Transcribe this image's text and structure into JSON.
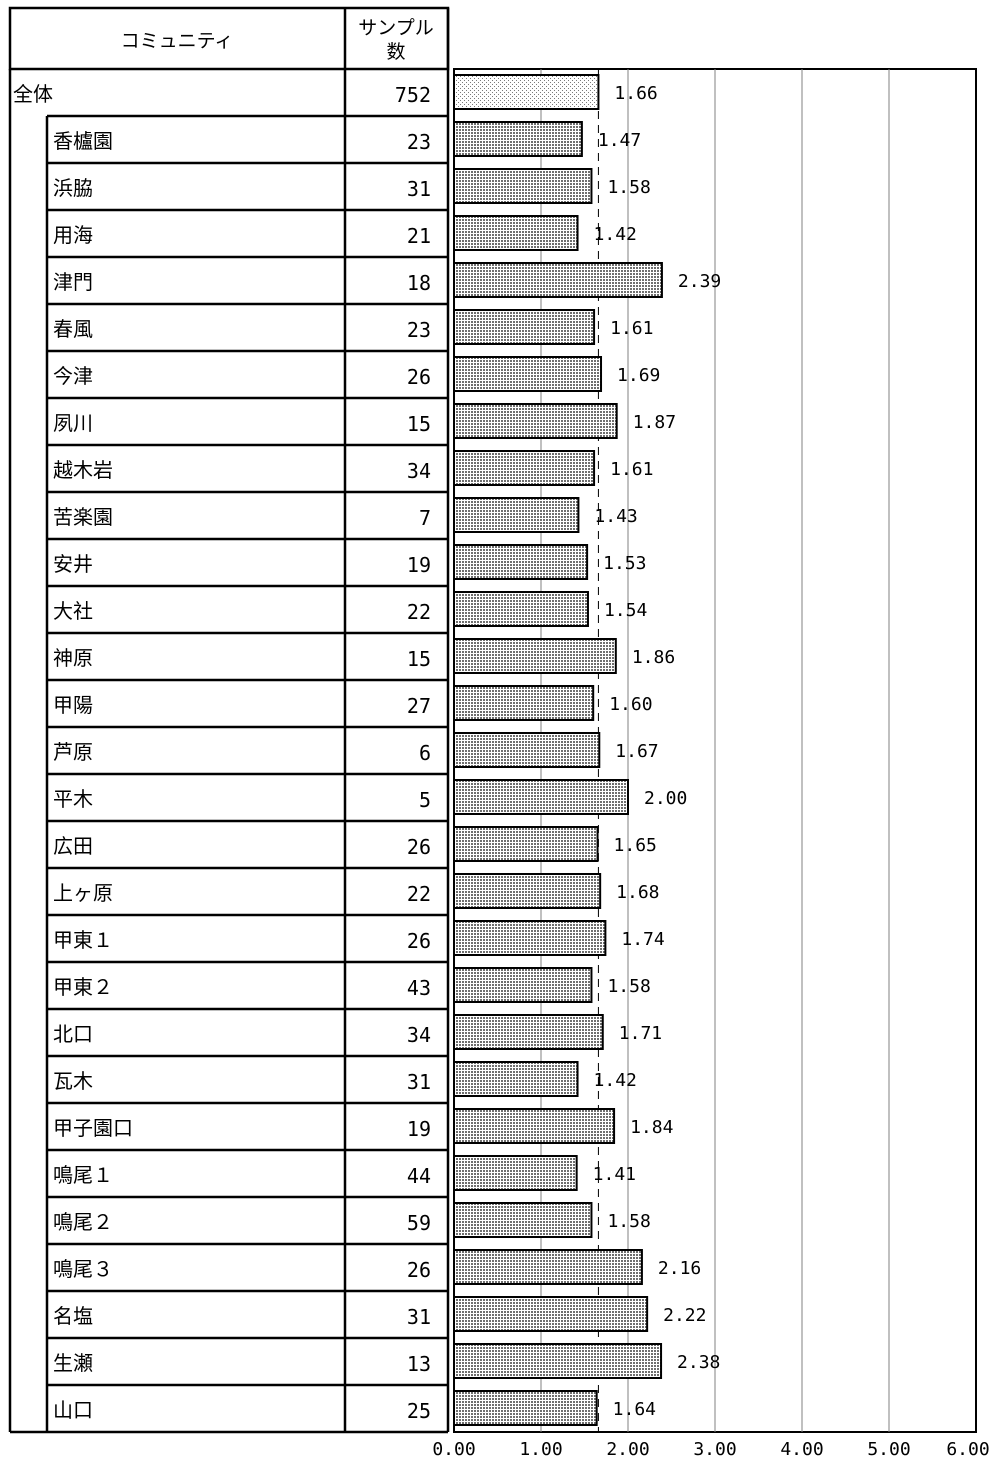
{
  "table": {
    "header_name": "コミュニティ",
    "header_sample_line1": "サンプル",
    "header_sample_line2": "数"
  },
  "chart_data": {
    "type": "bar",
    "orientation": "horizontal",
    "categories": [
      "全体",
      "香櫨園",
      "浜脇",
      "用海",
      "津門",
      "春風",
      "今津",
      "夙川",
      "越木岩",
      "苦楽園",
      "安井",
      "大社",
      "神原",
      "甲陽",
      "芦原",
      "平木",
      "広田",
      "上ヶ原",
      "甲東１",
      "甲東２",
      "北口",
      "瓦木",
      "甲子園口",
      "鳴尾１",
      "鳴尾２",
      "鳴尾３",
      "名塩",
      "生瀬",
      "山口"
    ],
    "samples": [
      752,
      23,
      31,
      21,
      18,
      23,
      26,
      15,
      34,
      7,
      19,
      22,
      15,
      27,
      6,
      5,
      26,
      22,
      26,
      43,
      34,
      31,
      19,
      44,
      59,
      26,
      31,
      13,
      25
    ],
    "values": [
      1.66,
      1.47,
      1.58,
      1.42,
      2.39,
      1.61,
      1.69,
      1.87,
      1.61,
      1.43,
      1.53,
      1.54,
      1.86,
      1.6,
      1.67,
      2.0,
      1.65,
      1.68,
      1.74,
      1.58,
      1.71,
      1.42,
      1.84,
      1.41,
      1.58,
      2.16,
      2.22,
      2.38,
      1.64
    ],
    "value_labels": [
      "1.66",
      "1.47",
      "1.58",
      "1.42",
      "2.39",
      "1.61",
      "1.69",
      "1.87",
      "1.61",
      "1.43",
      "1.53",
      "1.54",
      "1.86",
      "1.60",
      "1.67",
      "2.00",
      "1.65",
      "1.68",
      "1.74",
      "1.58",
      "1.71",
      "1.42",
      "1.84",
      "1.41",
      "1.58",
      "2.16",
      "2.22",
      "2.38",
      "1.64"
    ],
    "xlim": [
      0,
      6
    ],
    "ticks": [
      0,
      1,
      2,
      3,
      4,
      5,
      6
    ],
    "tick_labels": [
      "0.00",
      "1.00",
      "2.00",
      "3.00",
      "4.00",
      "5.00",
      "6.00"
    ],
    "reference_value": 1.66,
    "grid": true,
    "colors": {
      "bar_edge": "#000000",
      "grid": "#808080",
      "total_fill": "#e8e8e8",
      "bar_fill": "#c8c8c8"
    }
  }
}
